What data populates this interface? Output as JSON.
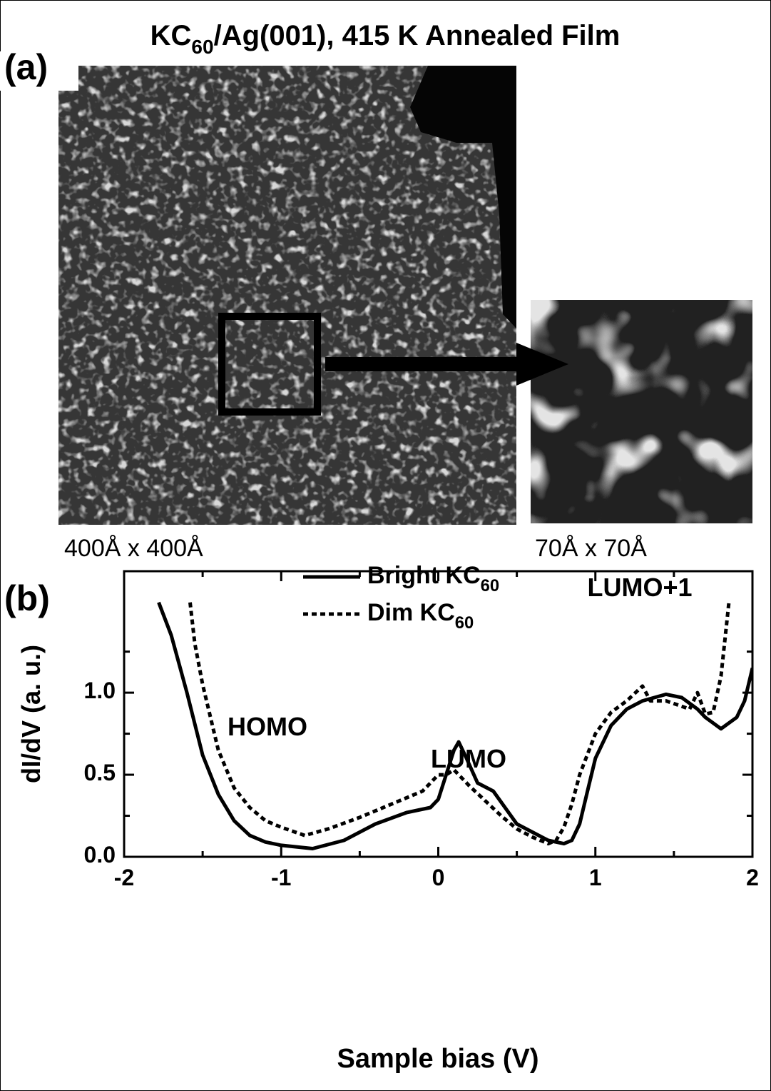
{
  "figure": {
    "title": "KC60/Ag(001), 415 K Annealed Film",
    "panel_a_label": "(a)",
    "panel_b_label": "(b)",
    "image_caption_large": "400Å x 400Å",
    "image_caption_small": "70Å x 70Å"
  },
  "chart_data": {
    "type": "line",
    "xlabel": "Sample bias (V)",
    "ylabel": "dI/dV (a. u.)",
    "xlim": [
      -2,
      2
    ],
    "xticks": [
      -2,
      -1,
      0,
      1,
      2
    ],
    "xminorticks": [
      -1.5,
      -0.5,
      0.5,
      1.5
    ],
    "ylim": [
      0,
      1.74
    ],
    "yticks": [
      {
        "value": 0,
        "label": "0.0"
      },
      {
        "value": 0.5,
        "label": "0.5"
      },
      {
        "value": 1,
        "label": "1.0"
      }
    ],
    "yminorticks": [
      0.25,
      0.75,
      1.25
    ],
    "annotations": [
      "HOMO",
      "LUMO",
      "LUMO+1"
    ],
    "series": [
      {
        "name": "Bright KC60",
        "color": "#000000",
        "dash": false,
        "x": [
          -1.78,
          -1.7,
          -1.6,
          -1.5,
          -1.4,
          -1.3,
          -1.2,
          -1.1,
          -1.0,
          -0.8,
          -0.6,
          -0.4,
          -0.2,
          -0.05,
          0.0,
          0.05,
          0.1,
          0.13,
          0.18,
          0.25,
          0.35,
          0.5,
          0.6,
          0.7,
          0.8,
          0.85,
          0.9,
          0.95,
          1.0,
          1.1,
          1.2,
          1.3,
          1.45,
          1.55,
          1.65,
          1.7,
          1.8,
          1.9,
          1.95,
          2.0
        ],
        "values": [
          1.55,
          1.35,
          1.0,
          0.62,
          0.38,
          0.22,
          0.13,
          0.09,
          0.07,
          0.05,
          0.1,
          0.2,
          0.27,
          0.3,
          0.35,
          0.5,
          0.65,
          0.7,
          0.6,
          0.45,
          0.4,
          0.2,
          0.15,
          0.1,
          0.08,
          0.1,
          0.2,
          0.4,
          0.6,
          0.8,
          0.9,
          0.95,
          0.99,
          0.97,
          0.9,
          0.85,
          0.78,
          0.85,
          0.95,
          1.15
        ]
      },
      {
        "name": "Dim KC60",
        "color": "#000000",
        "dash": true,
        "x": [
          -1.58,
          -1.55,
          -1.5,
          -1.45,
          -1.4,
          -1.3,
          -1.2,
          -1.1,
          -1.0,
          -0.85,
          -0.7,
          -0.5,
          -0.3,
          -0.1,
          0.0,
          0.05,
          0.1,
          0.2,
          0.3,
          0.4,
          0.5,
          0.6,
          0.7,
          0.75,
          0.8,
          0.85,
          0.9,
          1.0,
          1.1,
          1.2,
          1.3,
          1.35,
          1.45,
          1.6,
          1.65,
          1.7,
          1.75,
          1.8,
          1.85
        ],
        "values": [
          1.55,
          1.3,
          1.05,
          0.85,
          0.65,
          0.42,
          0.3,
          0.22,
          0.18,
          0.13,
          0.17,
          0.24,
          0.32,
          0.4,
          0.5,
          0.5,
          0.53,
          0.43,
          0.34,
          0.25,
          0.17,
          0.12,
          0.08,
          0.1,
          0.18,
          0.32,
          0.5,
          0.75,
          0.88,
          0.95,
          1.04,
          0.95,
          0.95,
          0.9,
          1.0,
          0.87,
          0.88,
          1.1,
          1.55
        ]
      }
    ]
  }
}
